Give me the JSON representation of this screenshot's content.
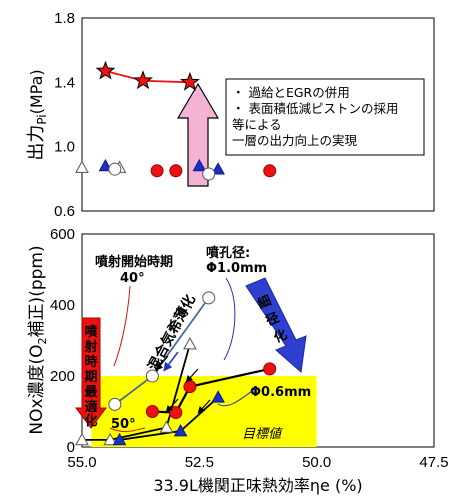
{
  "chart_data": [
    {
      "type": "scatter",
      "ylabel_main": "出力",
      "ylabel_sub": "Pi",
      "ylabel_unit": "(MPa)",
      "ylim": [
        0.6,
        1.8
      ],
      "yticks": [
        "1.8",
        "1.4",
        "1.0",
        "0.6"
      ],
      "xlim": [
        55.0,
        47.5
      ],
      "series": [
        {
          "marker": "star",
          "line": true,
          "points": [
            [
              54.5,
              1.47
            ],
            [
              53.7,
              1.41
            ],
            [
              52.7,
              1.4
            ]
          ]
        },
        {
          "marker": "triangle-open",
          "line": false,
          "points": [
            [
              55.0,
              0.87
            ],
            [
              54.2,
              0.87
            ]
          ]
        },
        {
          "marker": "triangle-filled",
          "line": false,
          "points": [
            [
              54.5,
              0.88
            ],
            [
              52.5,
              0.88
            ],
            [
              52.1,
              0.86
            ]
          ]
        },
        {
          "marker": "circle-open",
          "line": false,
          "points": [
            [
              54.3,
              0.86
            ],
            [
              52.3,
              0.83
            ]
          ]
        },
        {
          "marker": "circle-filled",
          "line": false,
          "points": [
            [
              53.4,
              0.85
            ],
            [
              53.0,
              0.85
            ],
            [
              51.0,
              0.85
            ]
          ]
        }
      ],
      "annotation_lines": [
        "・ 過給とEGRの併用",
        "・ 表面積低減ピストンの採用",
        "等による",
        "一層の出力向上の実現"
      ]
    },
    {
      "type": "scatter",
      "ylabel": "NOx濃度(O",
      "ylabel_sub": "2",
      "ylabel_rest": "補正)(ppm)",
      "xlabel": "33.9L機関正味熱効率ηe (%)",
      "ylim": [
        0,
        600
      ],
      "yticks": [
        "600",
        "400",
        "200",
        "0"
      ],
      "xlim": [
        55.0,
        47.5
      ],
      "xticks": [
        "55.0",
        "52.5",
        "50.0",
        "47.5"
      ],
      "target_zone": {
        "x": [
          54.8,
          50.0
        ],
        "y": [
          0,
          200
        ],
        "label": "目標値"
      },
      "series": [
        {
          "name": "混合気希薄化",
          "marker": "circle-open",
          "line": true,
          "points": [
            [
              54.3,
              120
            ],
            [
              53.5,
              200
            ],
            [
              52.3,
              420
            ]
          ]
        },
        {
          "marker": "triangle-open",
          "line": true,
          "points": [
            [
              55.0,
              20
            ],
            [
              54.4,
              20
            ],
            [
              53.2,
              55
            ],
            [
              52.7,
              290
            ]
          ]
        },
        {
          "marker": "triangle-filled",
          "line": true,
          "points": [
            [
              54.2,
              20
            ],
            [
              52.9,
              45
            ],
            [
              52.1,
              140
            ]
          ]
        },
        {
          "marker": "circle-filled",
          "line": true,
          "points": [
            [
              53.5,
              100
            ],
            [
              53.0,
              97
            ],
            [
              52.7,
              170
            ],
            [
              51.0,
              220
            ]
          ]
        }
      ],
      "labels": {
        "injection_start": "噴射開始時期",
        "deg40": "40°",
        "deg50": "50°",
        "nozzle": "噴孔径:",
        "nozzle_10": "Φ1.0mm",
        "nozzle_06": "Φ0.6mm",
        "thin": "細径化",
        "lean": "混合気希薄化",
        "timing": "噴射時期最適化"
      }
    }
  ]
}
